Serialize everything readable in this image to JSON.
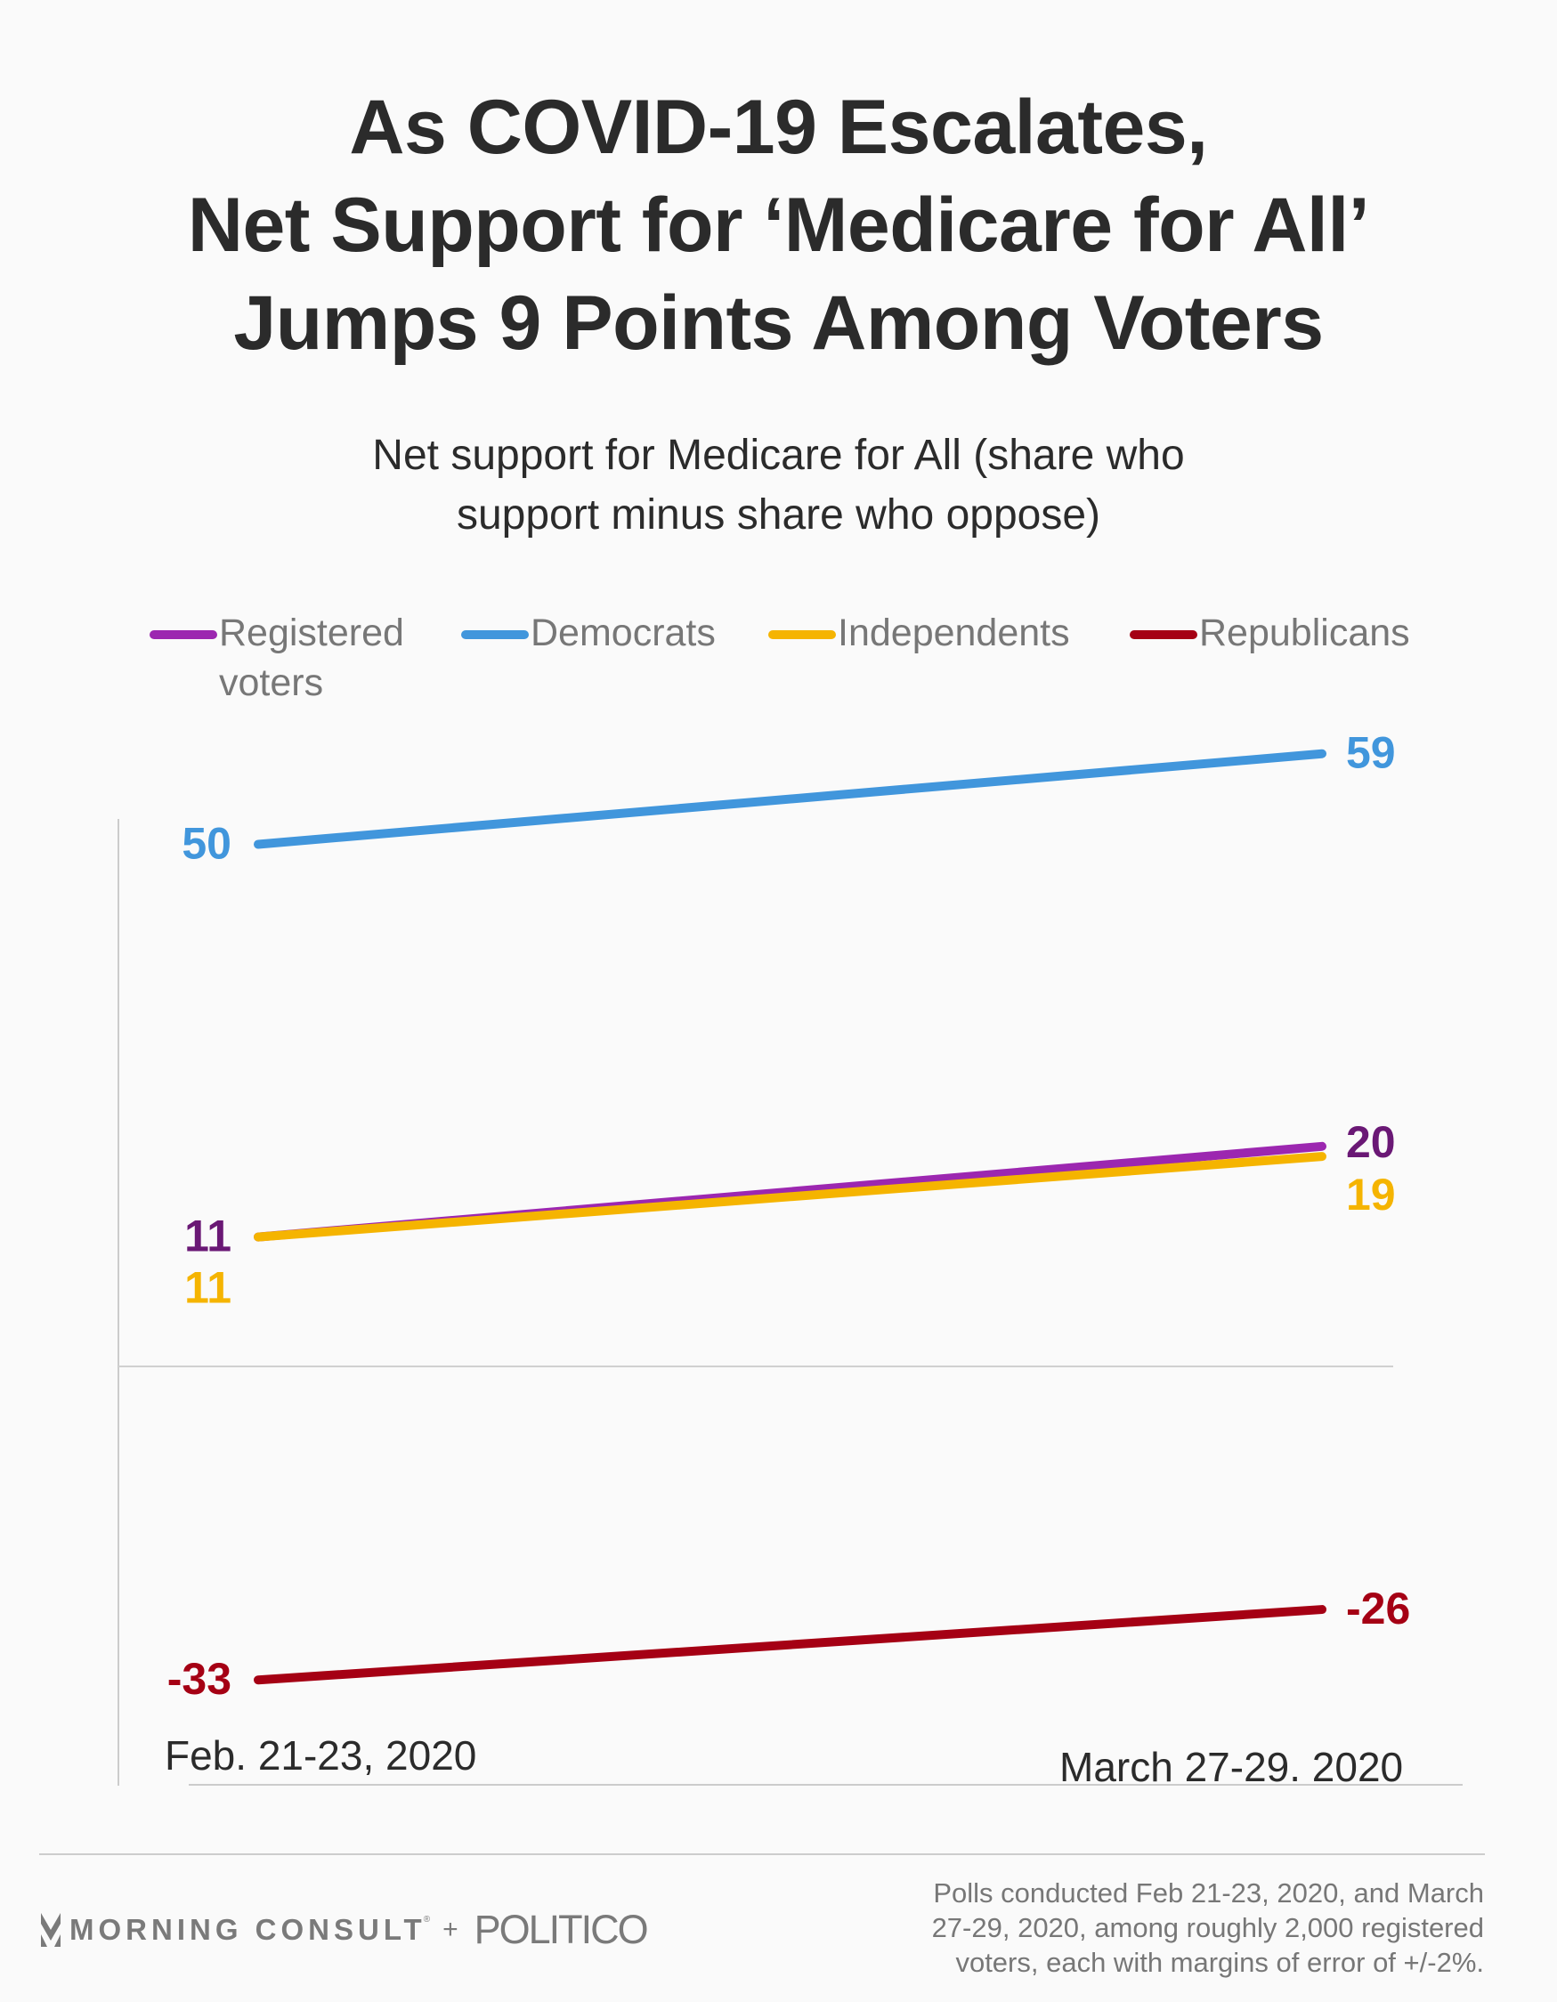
{
  "title_lines": [
    "As COVID-19 Escalates,",
    "Net Support for ‘Medicare for All’",
    "Jumps 9 Points Among Voters"
  ],
  "subtitle_lines": [
    "Net support for Medicare for All (share who",
    "support minus share who oppose)"
  ],
  "legend": [
    {
      "label_lines": [
        "Registered",
        "voters"
      ],
      "color": "#9c27b0"
    },
    {
      "label_lines": [
        "Democrats"
      ],
      "color": "#4196dc"
    },
    {
      "label_lines": [
        "Independents"
      ],
      "color": "#f5b400"
    },
    {
      "label_lines": [
        "Republicans"
      ],
      "color": "#a50014"
    }
  ],
  "chart_data": {
    "type": "line",
    "title": "As COVID-19 Escalates, Net Support for ‘Medicare for All’ Jumps 9 Points Among Voters",
    "subtitle": "Net support for Medicare for All (share who support minus share who oppose)",
    "xlabel": "",
    "ylabel": "",
    "x": [
      "Feb. 21-23, 2020",
      "March 27-29. 2020"
    ],
    "ylim": [
      -40,
      65
    ],
    "grid": "zero line only",
    "legend_position": "top",
    "series": [
      {
        "name": "Democrats",
        "values": [
          50,
          59
        ],
        "color": "#4196dc",
        "label_color": "#4196dc"
      },
      {
        "name": "Registered voters",
        "values": [
          11,
          20
        ],
        "color": "#9c27b0",
        "label_color": "#6a1875"
      },
      {
        "name": "Independents",
        "values": [
          11,
          19
        ],
        "color": "#f5b400",
        "label_color": "#f5b400"
      },
      {
        "name": "Republicans",
        "values": [
          -33,
          -26
        ],
        "color": "#a50014",
        "label_color": "#a50014"
      }
    ]
  },
  "footer": {
    "brand_left": "MORNING CONSULT",
    "brand_reg": "®",
    "brand_plus": "+",
    "brand_right": "POLITICO",
    "note_lines": [
      "Polls conducted Feb 21-23, 2020, and March",
      "27-29, 2020, among roughly 2,000 registered",
      "voters, each with margins of error of +/-2%."
    ]
  }
}
